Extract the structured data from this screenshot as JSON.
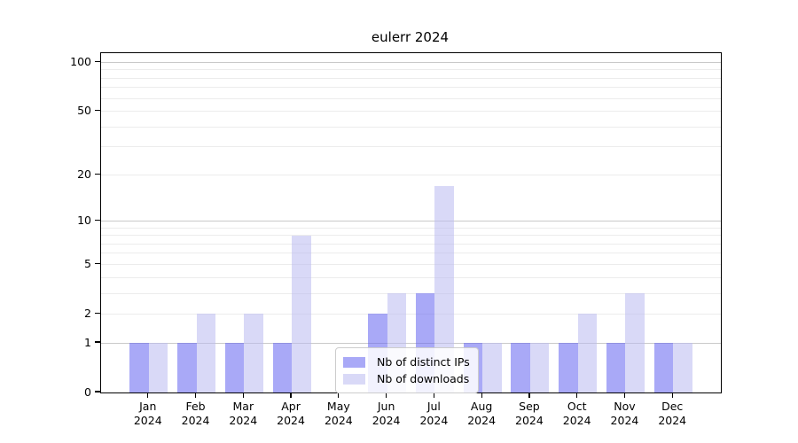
{
  "title": "eulerr 2024",
  "chart_data": {
    "type": "bar",
    "title": "eulerr 2024",
    "categories": [
      "Jan 2024",
      "Feb 2024",
      "Mar 2024",
      "Apr 2024",
      "May 2024",
      "Jun 2024",
      "Jul 2024",
      "Aug 2024",
      "Sep 2024",
      "Oct 2024",
      "Nov 2024",
      "Dec 2024"
    ],
    "series": [
      {
        "name": "Nb of distinct IPs",
        "color": "#a9a9f7",
        "values": [
          1,
          1,
          1,
          1,
          0,
          2,
          3,
          1,
          1,
          1,
          1,
          1
        ]
      },
      {
        "name": "Nb of downloads",
        "color": "#d9d9f7",
        "values": [
          1,
          2,
          2,
          8,
          0,
          3,
          17,
          1,
          1,
          2,
          3,
          1
        ]
      }
    ],
    "xlabel": "",
    "ylabel": "",
    "scale": "log1p",
    "ylim": [
      0,
      114
    ],
    "y_ticks": [
      0,
      1,
      2,
      5,
      10,
      20,
      50,
      100
    ],
    "grid_major_values": [
      1,
      10,
      100
    ],
    "grid_minor_values": [
      2,
      3,
      4,
      5,
      6,
      7,
      8,
      9,
      20,
      30,
      40,
      50,
      60,
      70,
      80,
      90
    ],
    "grid_major_color": "#c9c9c9",
    "grid_minor_color": "#ececec",
    "legend_position": "lower center inside",
    "legend_entries": [
      "Nb of distinct IPs",
      "Nb of downloads"
    ]
  }
}
